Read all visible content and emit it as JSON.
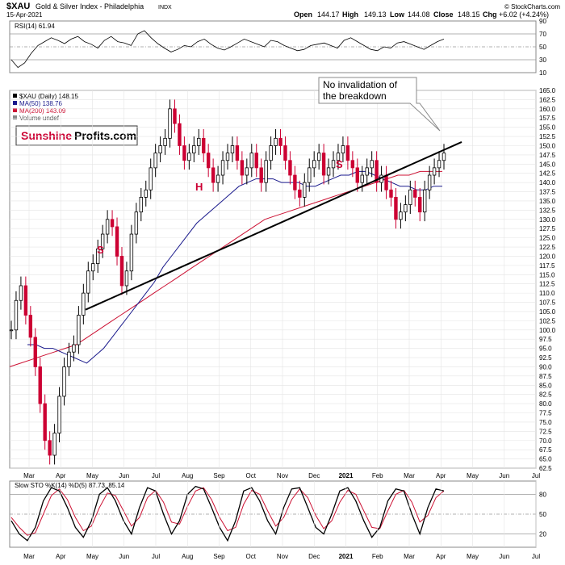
{
  "header": {
    "symbol": "$XAU",
    "name": "Gold & Silver Index - Philadelphia",
    "exchange": "INDX",
    "date": "15-Apr-2021",
    "watermark": "© StockCharts.com",
    "quote": {
      "open_label": "Open",
      "open": "144.17",
      "high_label": "High",
      "high": "149.13",
      "low_label": "Low",
      "low": "144.08",
      "close_label": "Close",
      "close": "148.15",
      "chg_label": "Chg",
      "chg": "+6.02 (+4.24%)"
    }
  },
  "colors": {
    "up": "#000000",
    "down": "#cc0033",
    "ma50": "#1a1a8c",
    "ma200": "#cc1133",
    "rsi_fill_neg": "#ccccff",
    "rsi_fill_pos": "#ffcccc",
    "accent": "#cc0033"
  },
  "brand": {
    "part1": "Sunshine",
    "part2": "Profits.com"
  },
  "annotation": {
    "line1": "No invalidation of",
    "line2": "the breakdown"
  },
  "pattern_labels": {
    "left_shoulder": "S",
    "head": "H",
    "right_shoulder": "S"
  },
  "chart_data": [
    {
      "type": "line",
      "title": "RSI(14) 61.94",
      "indicator": "RSI(14)",
      "value": 61.94,
      "y_ticks": [
        "90",
        "70",
        "50",
        "30",
        "10"
      ],
      "ylim": [
        10,
        90
      ],
      "reference_lines": [
        70,
        50,
        30
      ],
      "values": [
        30,
        18,
        25,
        40,
        52,
        58,
        64,
        60,
        55,
        62,
        66,
        58,
        54,
        48,
        60,
        66,
        58,
        56,
        52,
        70,
        75,
        64,
        55,
        48,
        42,
        46,
        52,
        50,
        58,
        62,
        54,
        48,
        45,
        50,
        56,
        62,
        58,
        54,
        50,
        60,
        58,
        52,
        48,
        44,
        46,
        52,
        54,
        56,
        52,
        48,
        60,
        64,
        58,
        52,
        46,
        44,
        50,
        48,
        56,
        58,
        54,
        50,
        46,
        52,
        58,
        62
      ]
    },
    {
      "type": "line",
      "title": "$XAU (Daily) 148.15",
      "legend": [
        "$XAU (Daily) 148.15",
        "MA(50) 138.76",
        "MA(200) 143.09",
        "Volume undef"
      ],
      "ylim": [
        62.5,
        165.0
      ],
      "y_ticks": [
        "165.0",
        "162.5",
        "160.0",
        "157.5",
        "155.0",
        "152.5",
        "150.0",
        "147.5",
        "145.0",
        "142.5",
        "140.0",
        "137.5",
        "135.0",
        "132.5",
        "130.0",
        "127.5",
        "125.0",
        "122.5",
        "120.0",
        "117.5",
        "115.0",
        "112.5",
        "110.0",
        "107.5",
        "105.0",
        "102.5",
        "100.0",
        "97.5",
        "95.0",
        "92.5",
        "90.0",
        "87.5",
        "85.0",
        "82.5",
        "80.0",
        "77.5",
        "75.0",
        "72.5",
        "70.0",
        "67.5",
        "65.0",
        "62.5"
      ],
      "x_ticks": [
        "Mar",
        "Apr",
        "May",
        "Jun",
        "Jul",
        "Aug",
        "Sep",
        "Oct",
        "Nov",
        "Dec",
        "2021",
        "Feb",
        "Mar",
        "Apr",
        "May",
        "Jun",
        "Jul"
      ],
      "price_series": [
        100,
        108,
        112,
        104,
        98,
        90,
        80,
        70,
        66,
        72,
        82,
        90,
        94,
        96,
        104,
        110,
        116,
        118,
        122,
        126,
        130,
        128,
        120,
        112,
        116,
        126,
        132,
        136,
        138,
        144,
        148,
        150,
        152,
        160,
        156,
        150,
        146,
        148,
        150,
        152,
        148,
        144,
        140,
        142,
        146,
        148,
        150,
        146,
        142,
        144,
        148,
        144,
        140,
        146,
        150,
        152,
        150,
        146,
        142,
        138,
        136,
        140,
        144,
        146,
        148,
        142,
        144,
        146,
        148,
        150,
        146,
        144,
        140,
        142,
        144,
        146,
        140,
        142,
        138,
        136,
        130,
        132,
        134,
        138,
        136,
        132,
        138,
        142,
        144,
        146,
        148
      ],
      "ma50": [
        96,
        96,
        95,
        95,
        94,
        93,
        92,
        91,
        93,
        95,
        98,
        101,
        104,
        107,
        110,
        113,
        117,
        120,
        123,
        126,
        129,
        131,
        133,
        135,
        137,
        139,
        140,
        141,
        141,
        141,
        140,
        140,
        140,
        139,
        139,
        140,
        141,
        142,
        142,
        143,
        143,
        142,
        141,
        140,
        139,
        139,
        138,
        138,
        139,
        139
      ],
      "ma200": [
        90,
        91,
        92,
        93,
        94,
        95,
        96,
        98,
        100,
        102,
        104,
        106,
        108,
        110,
        112,
        114,
        116,
        118,
        120,
        122,
        124,
        126,
        128,
        130,
        131,
        132,
        133,
        134,
        135,
        136,
        137,
        138,
        139,
        140,
        141,
        142,
        142,
        143,
        143,
        143
      ],
      "trendline": {
        "from": [
          "May",
          105.5
        ],
        "to": [
          "May",
          151.0
        ]
      }
    },
    {
      "type": "line",
      "title": "Slow STO %K(14) %D(5) 87.73, 85.14",
      "indicator": "Slow STO %K(14) %D(5)",
      "k_value": 87.73,
      "d_value": 85.14,
      "y_ticks": [
        "80",
        "50",
        "20"
      ],
      "ylim": [
        0,
        100
      ],
      "reference_lines": [
        80,
        50,
        20
      ],
      "x_ticks": [
        "Mar",
        "Apr",
        "May",
        "Jun",
        "Jul",
        "Aug",
        "Sep",
        "Oct",
        "Nov",
        "Dec",
        "2021",
        "Feb",
        "Mar",
        "Apr",
        "May",
        "Jun",
        "Jul"
      ],
      "k_values": [
        40,
        20,
        10,
        30,
        70,
        90,
        85,
        60,
        30,
        15,
        40,
        80,
        90,
        70,
        40,
        20,
        60,
        90,
        85,
        50,
        20,
        40,
        80,
        92,
        88,
        60,
        30,
        10,
        40,
        85,
        90,
        70,
        40,
        20,
        60,
        88,
        90,
        60,
        30,
        20,
        50,
        85,
        90,
        70,
        40,
        15,
        30,
        70,
        88,
        85,
        50,
        20,
        60,
        88,
        85
      ],
      "d_values": [
        45,
        30,
        18,
        22,
        50,
        78,
        88,
        72,
        45,
        25,
        32,
        60,
        82,
        78,
        55,
        32,
        45,
        75,
        86,
        68,
        38,
        35,
        62,
        85,
        90,
        72,
        45,
        25,
        30,
        65,
        86,
        80,
        55,
        32,
        45,
        72,
        88,
        75,
        48,
        28,
        40,
        68,
        86,
        80,
        55,
        30,
        28,
        55,
        80,
        86,
        68,
        38,
        48,
        75,
        85
      ]
    }
  ]
}
